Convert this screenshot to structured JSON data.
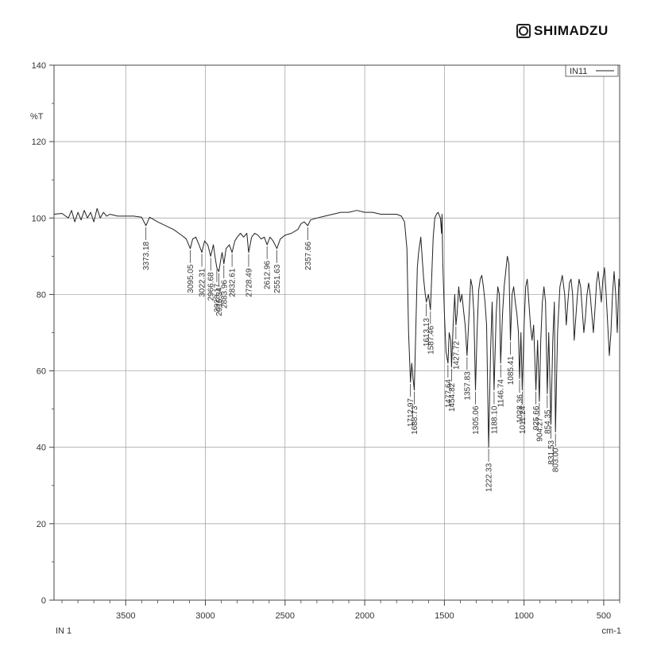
{
  "brand": {
    "name": "SHIMADZU",
    "icon": "shimadzu-logo-icon"
  },
  "chart_data": {
    "type": "line",
    "title": "",
    "ylabel": "%T",
    "xlabel": "cm-1",
    "bottom_left_label": "IN 1",
    "legend": {
      "name": "IN11",
      "placement": "top-right"
    },
    "xlim": [
      3950,
      400
    ],
    "ylim": [
      0,
      140
    ],
    "x_ticks": [
      3500,
      3000,
      2500,
      2000,
      1500,
      1000,
      500
    ],
    "y_ticks": [
      0,
      20,
      40,
      60,
      80,
      100,
      120,
      140
    ],
    "grid": true,
    "series": [
      {
        "name": "IN11",
        "color": "#222222",
        "points": [
          [
            3950,
            101
          ],
          [
            3900,
            101.2
          ],
          [
            3860,
            100
          ],
          [
            3840,
            102
          ],
          [
            3820,
            99
          ],
          [
            3800,
            101.5
          ],
          [
            3780,
            99.5
          ],
          [
            3760,
            102
          ],
          [
            3740,
            100
          ],
          [
            3720,
            101.5
          ],
          [
            3700,
            99
          ],
          [
            3680,
            102.5
          ],
          [
            3660,
            100
          ],
          [
            3640,
            101.5
          ],
          [
            3620,
            100.5
          ],
          [
            3600,
            101
          ],
          [
            3550,
            100.5
          ],
          [
            3500,
            100.5
          ],
          [
            3450,
            100.5
          ],
          [
            3400,
            100.2
          ],
          [
            3373.18,
            98
          ],
          [
            3350,
            100.2
          ],
          [
            3300,
            99
          ],
          [
            3250,
            98
          ],
          [
            3200,
            97
          ],
          [
            3150,
            95.5
          ],
          [
            3120,
            94.5
          ],
          [
            3095.05,
            92
          ],
          [
            3080,
            94.5
          ],
          [
            3060,
            95
          ],
          [
            3040,
            93
          ],
          [
            3022.31,
            91
          ],
          [
            3005,
            94
          ],
          [
            2985,
            93
          ],
          [
            2966.68,
            90
          ],
          [
            2950,
            93
          ],
          [
            2940,
            90
          ],
          [
            2928.17,
            87
          ],
          [
            2915.34,
            86
          ],
          [
            2900,
            90
          ],
          [
            2895,
            91
          ],
          [
            2883.96,
            88
          ],
          [
            2870,
            92
          ],
          [
            2850,
            93
          ],
          [
            2832.61,
            91
          ],
          [
            2815,
            94
          ],
          [
            2800,
            95
          ],
          [
            2780,
            96
          ],
          [
            2760,
            95
          ],
          [
            2740,
            96
          ],
          [
            2728.49,
            91
          ],
          [
            2710,
            95
          ],
          [
            2690,
            96
          ],
          [
            2670,
            95.5
          ],
          [
            2650,
            94.5
          ],
          [
            2630,
            95
          ],
          [
            2612.96,
            93
          ],
          [
            2595,
            95
          ],
          [
            2575,
            94
          ],
          [
            2551.63,
            92
          ],
          [
            2530,
            94.5
          ],
          [
            2500,
            95.5
          ],
          [
            2460,
            96
          ],
          [
            2420,
            97
          ],
          [
            2400,
            98.5
          ],
          [
            2380,
            99
          ],
          [
            2357.66,
            98
          ],
          [
            2340,
            99.5
          ],
          [
            2300,
            100
          ],
          [
            2250,
            100.5
          ],
          [
            2200,
            101
          ],
          [
            2150,
            101.5
          ],
          [
            2100,
            101.5
          ],
          [
            2050,
            102
          ],
          [
            2000,
            101.5
          ],
          [
            1950,
            101.5
          ],
          [
            1900,
            101
          ],
          [
            1850,
            101
          ],
          [
            1800,
            101
          ],
          [
            1770,
            100.5
          ],
          [
            1750,
            99
          ],
          [
            1735,
            92
          ],
          [
            1725,
            70
          ],
          [
            1712.97,
            57
          ],
          [
            1705,
            62
          ],
          [
            1697,
            58
          ],
          [
            1688.73,
            55
          ],
          [
            1680,
            70
          ],
          [
            1670,
            87
          ],
          [
            1662,
            91
          ],
          [
            1655,
            93
          ],
          [
            1648,
            95
          ],
          [
            1640,
            90
          ],
          [
            1630,
            84
          ],
          [
            1620,
            80
          ],
          [
            1613.13,
            78
          ],
          [
            1600,
            80
          ],
          [
            1587.46,
            76
          ],
          [
            1580,
            84
          ],
          [
            1570,
            95
          ],
          [
            1560,
            100
          ],
          [
            1550,
            101
          ],
          [
            1540,
            101.5
          ],
          [
            1525,
            100
          ],
          [
            1518,
            96
          ],
          [
            1515,
            101
          ],
          [
            1510,
            88
          ],
          [
            1500,
            75
          ],
          [
            1490,
            65
          ],
          [
            1477.64,
            62
          ],
          [
            1470,
            70
          ],
          [
            1460,
            68
          ],
          [
            1454.82,
            61
          ],
          [
            1445,
            72
          ],
          [
            1435,
            80
          ],
          [
            1427.72,
            72
          ],
          [
            1420,
            75
          ],
          [
            1410,
            82
          ],
          [
            1400,
            78
          ],
          [
            1390,
            80
          ],
          [
            1380,
            76
          ],
          [
            1370,
            72
          ],
          [
            1357.83,
            64
          ],
          [
            1345,
            75
          ],
          [
            1335,
            84
          ],
          [
            1325,
            82
          ],
          [
            1315,
            75
          ],
          [
            1305.06,
            55
          ],
          [
            1295,
            70
          ],
          [
            1285,
            81
          ],
          [
            1275,
            84
          ],
          [
            1265,
            85
          ],
          [
            1255,
            82
          ],
          [
            1245,
            78
          ],
          [
            1235,
            72
          ],
          [
            1222.33,
            40
          ],
          [
            1210,
            65
          ],
          [
            1200,
            78
          ],
          [
            1188.1,
            55
          ],
          [
            1175,
            75
          ],
          [
            1165,
            82
          ],
          [
            1155,
            80
          ],
          [
            1146.74,
            62
          ],
          [
            1135,
            75
          ],
          [
            1125,
            82
          ],
          [
            1115,
            86
          ],
          [
            1105,
            90
          ],
          [
            1095,
            88
          ],
          [
            1085.41,
            68
          ],
          [
            1075,
            80
          ],
          [
            1065,
            82
          ],
          [
            1055,
            78
          ],
          [
            1045,
            75
          ],
          [
            1035,
            70
          ],
          [
            1028.36,
            58
          ],
          [
            1020,
            70
          ],
          [
            1011.24,
            55
          ],
          [
            1000,
            72
          ],
          [
            990,
            82
          ],
          [
            980,
            84
          ],
          [
            970,
            78
          ],
          [
            960,
            72
          ],
          [
            950,
            68
          ],
          [
            940,
            72
          ],
          [
            925.66,
            55
          ],
          [
            915,
            68
          ],
          [
            904.27,
            52
          ],
          [
            895,
            68
          ],
          [
            885,
            78
          ],
          [
            875,
            82
          ],
          [
            865,
            78
          ],
          [
            854.35,
            54
          ],
          [
            845,
            70
          ],
          [
            831.53,
            46
          ],
          [
            820,
            68
          ],
          [
            810,
            78
          ],
          [
            803.0,
            44
          ],
          [
            790,
            70
          ],
          [
            775,
            82
          ],
          [
            760,
            85
          ],
          [
            745,
            80
          ],
          [
            735,
            72
          ],
          [
            725,
            78
          ],
          [
            715,
            83
          ],
          [
            705,
            84
          ],
          [
            695,
            80
          ],
          [
            685,
            68
          ],
          [
            675,
            74
          ],
          [
            665,
            80
          ],
          [
            655,
            84
          ],
          [
            645,
            82
          ],
          [
            635,
            76
          ],
          [
            625,
            70
          ],
          [
            615,
            74
          ],
          [
            605,
            80
          ],
          [
            595,
            83
          ],
          [
            585,
            80
          ],
          [
            575,
            75
          ],
          [
            565,
            70
          ],
          [
            555,
            76
          ],
          [
            545,
            83
          ],
          [
            535,
            86
          ],
          [
            525,
            82
          ],
          [
            515,
            78
          ],
          [
            505,
            84
          ],
          [
            495,
            87
          ],
          [
            485,
            80
          ],
          [
            475,
            72
          ],
          [
            465,
            64
          ],
          [
            455,
            70
          ],
          [
            445,
            80
          ],
          [
            435,
            86
          ],
          [
            425,
            80
          ],
          [
            415,
            70
          ],
          [
            405,
            84
          ],
          [
            400,
            82
          ]
        ]
      }
    ],
    "peaks": [
      {
        "x": 3373.18,
        "label": "3373.18"
      },
      {
        "x": 3095.05,
        "label": "3095.05"
      },
      {
        "x": 3022.31,
        "label": "3022.31"
      },
      {
        "x": 2966.68,
        "label": "2966.68"
      },
      {
        "x": 2928.17,
        "label": "2928.17"
      },
      {
        "x": 2915.34,
        "label": "2915.34"
      },
      {
        "x": 2883.96,
        "label": "2883.96"
      },
      {
        "x": 2832.61,
        "label": "2832.61"
      },
      {
        "x": 2728.49,
        "label": "2728.49"
      },
      {
        "x": 2612.96,
        "label": "2612.96"
      },
      {
        "x": 2551.63,
        "label": "2551.63"
      },
      {
        "x": 2357.66,
        "label": "2357.66"
      },
      {
        "x": 1712.97,
        "label": "1712.97"
      },
      {
        "x": 1688.73,
        "label": "1688.73"
      },
      {
        "x": 1613.13,
        "label": "1613.13"
      },
      {
        "x": 1587.46,
        "label": "1587.46"
      },
      {
        "x": 1477.64,
        "label": "1477.64"
      },
      {
        "x": 1454.82,
        "label": "1454.82"
      },
      {
        "x": 1427.72,
        "label": "1427.72"
      },
      {
        "x": 1357.83,
        "label": "1357.83"
      },
      {
        "x": 1305.06,
        "label": "1305.06"
      },
      {
        "x": 1222.33,
        "label": "1222.33"
      },
      {
        "x": 1188.1,
        "label": "1188.10"
      },
      {
        "x": 1146.74,
        "label": "1146.74"
      },
      {
        "x": 1085.41,
        "label": "1085.41"
      },
      {
        "x": 1028.36,
        "label": "1028.36"
      },
      {
        "x": 1011.24,
        "label": "1011.24"
      },
      {
        "x": 925.66,
        "label": "925.66"
      },
      {
        "x": 904.27,
        "label": "904.27"
      },
      {
        "x": 854.35,
        "label": "854.35"
      },
      {
        "x": 831.53,
        "label": "831.53"
      },
      {
        "x": 803.0,
        "label": "803.00"
      }
    ]
  }
}
